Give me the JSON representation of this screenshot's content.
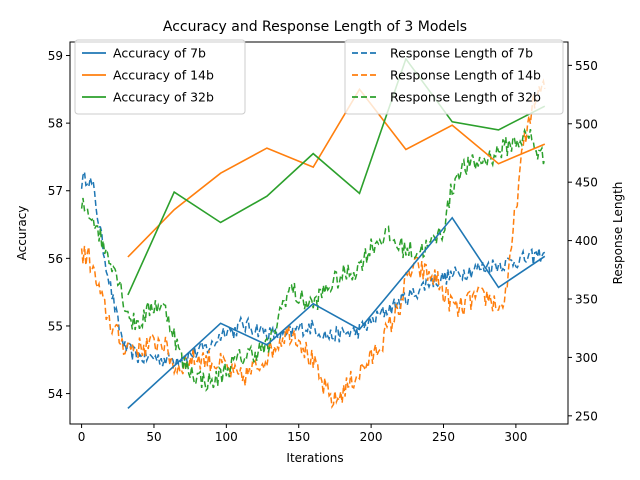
{
  "chart_data": {
    "type": "line",
    "title": "Accuracy and Response Length of 3 Models",
    "xlabel": "Iterations",
    "ylabel": "Accuracy",
    "y2label": "Response Length",
    "xlim": [
      -8,
      336
    ],
    "ylim": [
      53.55,
      59.2
    ],
    "y2lim": [
      243,
      570
    ],
    "xticks": [
      0,
      50,
      100,
      150,
      200,
      250,
      300
    ],
    "yticks": [
      54,
      55,
      56,
      57,
      58,
      59
    ],
    "y2ticks": [
      250,
      300,
      350,
      400,
      450,
      500,
      550
    ],
    "colors": {
      "7b": "#1f77b4",
      "14b": "#ff7f0e",
      "32b": "#2ca02c"
    },
    "accuracy_series": [
      {
        "name": "Accuracy of 7b",
        "color": "#1f77b4",
        "x": [
          32,
          96,
          128,
          160,
          192,
          256,
          288,
          320
        ],
        "y": [
          53.78,
          55.04,
          54.72,
          55.33,
          54.95,
          56.6,
          55.57,
          56.03
        ]
      },
      {
        "name": "Accuracy of 14b",
        "color": "#ff7f0e",
        "x": [
          32,
          64,
          96,
          128,
          160,
          192,
          224,
          256,
          288,
          320
        ],
        "y": [
          56.02,
          56.72,
          57.26,
          57.63,
          57.35,
          58.5,
          57.61,
          57.97,
          57.4,
          57.69
        ]
      },
      {
        "name": "Accuracy of 32b",
        "color": "#2ca02c",
        "x": [
          32,
          64,
          96,
          128,
          160,
          192,
          224,
          256,
          288,
          320
        ],
        "y": [
          55.46,
          56.98,
          56.53,
          56.92,
          57.55,
          56.96,
          58.95,
          58.02,
          57.9,
          58.25
        ]
      }
    ],
    "length_series": [
      {
        "name": "Response Length of 7b",
        "color": "#1f77b4",
        "x": [
          0,
          4,
          8,
          14,
          20,
          25,
          30,
          40,
          50,
          60,
          70,
          80,
          90,
          95,
          100,
          105,
          110,
          120,
          130,
          140,
          150,
          160,
          170,
          180,
          190,
          200,
          210,
          220,
          230,
          240,
          250,
          260,
          270,
          280,
          290,
          300,
          310,
          320
        ],
        "y": [
          450,
          455,
          445,
          400,
          360,
          330,
          308,
          300,
          300,
          298,
          300,
          305,
          310,
          318,
          325,
          322,
          328,
          325,
          320,
          318,
          325,
          326,
          318,
          320,
          322,
          330,
          340,
          348,
          355,
          365,
          368,
          372,
          375,
          378,
          380,
          383,
          385,
          390
        ]
      },
      {
        "name": "Response Length of 14b",
        "color": "#ff7f0e",
        "x": [
          0,
          5,
          10,
          15,
          20,
          25,
          30,
          40,
          50,
          55,
          60,
          65,
          70,
          80,
          90,
          100,
          105,
          110,
          120,
          130,
          140,
          145,
          150,
          155,
          160,
          165,
          170,
          175,
          180,
          190,
          200,
          210,
          220,
          225,
          230,
          240,
          245,
          250,
          260,
          270,
          280,
          290,
          295,
          300,
          305,
          310,
          315,
          320
        ],
        "y": [
          388,
          386,
          365,
          345,
          330,
          318,
          310,
          308,
          312,
          315,
          303,
          290,
          295,
          300,
          297,
          292,
          285,
          282,
          290,
          305,
          320,
          322,
          318,
          305,
          295,
          280,
          268,
          262,
          270,
          285,
          298,
          320,
          345,
          368,
          378,
          370,
          368,
          355,
          340,
          350,
          352,
          342,
          368,
          430,
          478,
          510,
          525,
          530
        ]
      },
      {
        "name": "Response Length of 32b",
        "color": "#2ca02c",
        "x": [
          0,
          5,
          10,
          15,
          20,
          25,
          30,
          35,
          40,
          50,
          55,
          60,
          65,
          70,
          80,
          90,
          100,
          110,
          120,
          130,
          140,
          145,
          150,
          160,
          170,
          180,
          190,
          200,
          210,
          220,
          230,
          240,
          250,
          255,
          260,
          270,
          280,
          290,
          300,
          310,
          315,
          320
        ],
        "y": [
          430,
          425,
          415,
          395,
          385,
          370,
          345,
          330,
          330,
          345,
          345,
          335,
          315,
          295,
          283,
          278,
          290,
          300,
          305,
          310,
          350,
          360,
          350,
          345,
          360,
          370,
          375,
          395,
          405,
          395,
          390,
          395,
          410,
          440,
          460,
          465,
          470,
          478,
          485,
          490,
          475,
          470
        ]
      }
    ],
    "legend_left": [
      "Accuracy of 7b",
      "Accuracy of 14b",
      "Accuracy of 32b"
    ],
    "legend_right": [
      "Response Length of 7b",
      "Response Length of 14b",
      "Response Length of 32b"
    ],
    "legend_positions": [
      "upper-left",
      "upper-right"
    ]
  }
}
